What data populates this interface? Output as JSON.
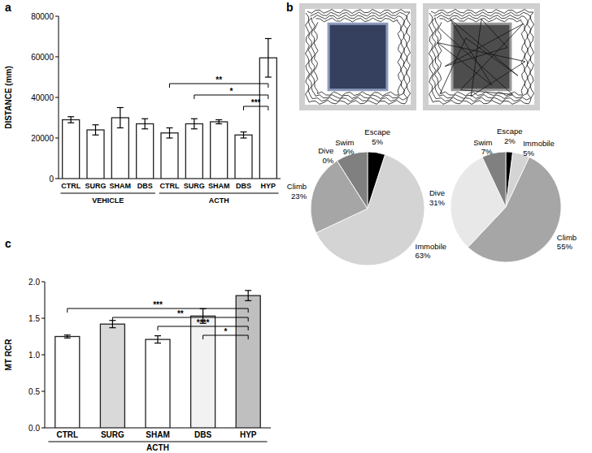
{
  "chart_data": [
    {
      "type": "bar",
      "panel_label": "a",
      "ylabel": "DISTANCE (mm)",
      "categories": [
        "CTRL",
        "SURG",
        "SHAM",
        "DBS",
        "CTRL",
        "SURG",
        "SHAM",
        "DBS",
        "HYP"
      ],
      "values": [
        29000,
        24000,
        30000,
        27000,
        22500,
        27000,
        28000,
        21500,
        59500
      ],
      "errors": [
        1500,
        2500,
        5000,
        2500,
        2500,
        2500,
        1000,
        1500,
        9500
      ],
      "color": "#ffffff",
      "ylim": [
        0,
        80000
      ],
      "yticks": [
        0,
        20000,
        40000,
        60000,
        80000
      ],
      "groups": [
        {
          "label": "VEHICLE",
          "from": 0,
          "to": 3
        },
        {
          "label": "ACTH",
          "from": 4,
          "to": 8
        }
      ],
      "annotations": [
        {
          "text": "**",
          "from": 4,
          "to": 8
        },
        {
          "text": "*",
          "from": 5,
          "to": 8
        },
        {
          "text": "***",
          "from": 7,
          "to": 8
        }
      ]
    },
    {
      "type": "pie",
      "panel_label": "b",
      "categories": [
        "Escape",
        "Immobile",
        "Climb",
        "Dive",
        "Swim"
      ],
      "values": [
        5,
        63,
        23,
        0,
        9
      ],
      "value_labels": [
        "5%",
        "63%",
        "23%",
        "0%",
        "9%"
      ],
      "colors": [
        "#000000",
        "#d4d4d4",
        "#a6a6a6",
        "#e8e8e8",
        "#808080"
      ],
      "data_labels": true
    },
    {
      "type": "pie",
      "categories": [
        "Escape",
        "Immobile",
        "Climb",
        "Dive",
        "Swim"
      ],
      "values": [
        2,
        5,
        55,
        31,
        7
      ],
      "value_labels": [
        "2%",
        "5%",
        "55%",
        "31%",
        "7%"
      ],
      "colors": [
        "#000000",
        "#d4d4d4",
        "#a6a6a6",
        "#e8e8e8",
        "#808080"
      ],
      "data_labels": true
    },
    {
      "type": "bar",
      "panel_label": "c",
      "ylabel": "MT RCR",
      "categories": [
        "CTRL",
        "SURG",
        "SHAM",
        "DBS",
        "HYP"
      ],
      "values": [
        1.25,
        1.42,
        1.21,
        1.53,
        1.81
      ],
      "errors": [
        0.02,
        0.05,
        0.05,
        0.1,
        0.07
      ],
      "colors": [
        "#ffffff",
        "#d9d9d9",
        "#ffffff",
        "#f2f2f2",
        "#bfbfbf"
      ],
      "ylim": [
        0,
        2
      ],
      "yticks": [
        {
          "value": 0,
          "label": "0.0"
        },
        {
          "value": 0.5,
          "label": "0.5"
        },
        {
          "value": 1,
          "label": "1.0"
        },
        {
          "value": 1.5,
          "label": "1.5"
        },
        {
          "value": 2,
          "label": "2.0"
        }
      ],
      "groups": [
        {
          "label": "ACTH",
          "from": 0,
          "to": 4
        }
      ],
      "annotations": [
        {
          "text": "***",
          "from": 0,
          "to": 4
        },
        {
          "text": "**",
          "from": 1,
          "to": 4
        },
        {
          "text": "****",
          "from": 2,
          "to": 4
        },
        {
          "text": "*",
          "from": 3,
          "to": 4
        }
      ]
    }
  ]
}
